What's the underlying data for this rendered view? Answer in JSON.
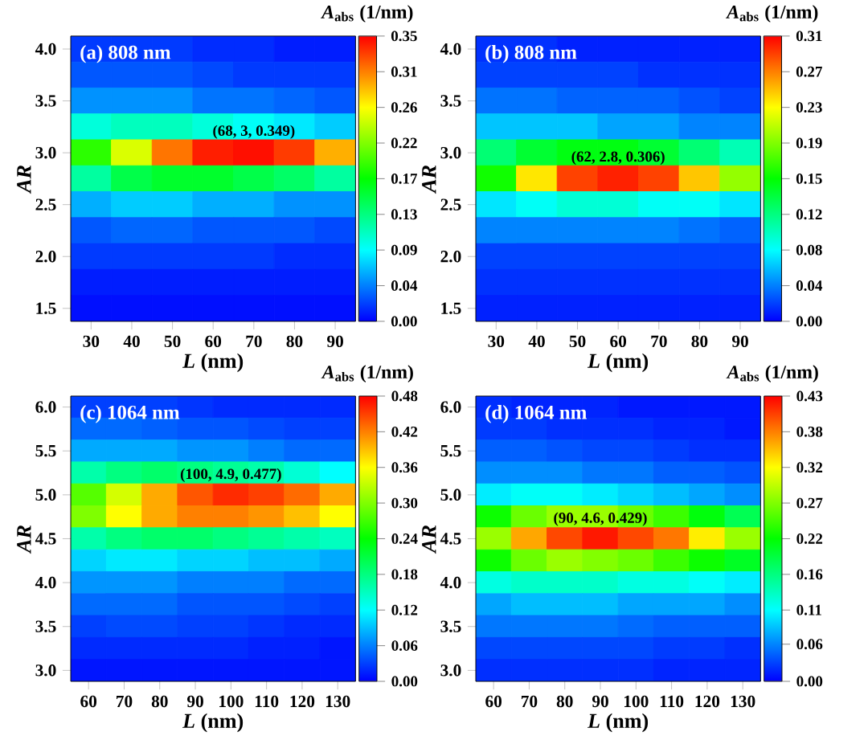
{
  "chart_data": [
    {
      "type": "heatmap",
      "title": "(a) 808 nm",
      "xlabel": "*L* (nm)",
      "ylabel": "AR",
      "clabel": "*A*$_{abs}$ (1/nm)",
      "categories": [
        "30",
        "40",
        "50",
        "60",
        "70",
        "80",
        "90"
      ],
      "y_categories": [
        "4.0",
        null,
        "3.5",
        null,
        "3.0",
        null,
        "2.5",
        null,
        "2.0",
        null,
        "1.5"
      ],
      "cells": [
        [
          0.02,
          0.02,
          0.02,
          0.015,
          0.015,
          0.01,
          0.01
        ],
        [
          0.03,
          0.03,
          0.03,
          0.025,
          0.02,
          0.02,
          0.02
        ],
        [
          0.05,
          0.05,
          0.05,
          0.04,
          0.04,
          0.035,
          0.03
        ],
        [
          0.1,
          0.11,
          0.11,
          0.1,
          0.09,
          0.08,
          0.07
        ],
        [
          0.19,
          0.25,
          0.31,
          0.34,
          0.345,
          0.33,
          0.29
        ],
        [
          0.12,
          0.15,
          0.16,
          0.16,
          0.15,
          0.14,
          0.12
        ],
        [
          0.06,
          0.07,
          0.07,
          0.06,
          0.06,
          0.05,
          0.05
        ],
        [
          0.03,
          0.035,
          0.035,
          0.03,
          0.03,
          0.03,
          0.025
        ],
        [
          0.02,
          0.02,
          0.02,
          0.02,
          0.02,
          0.015,
          0.015
        ],
        [
          0.01,
          0.01,
          0.01,
          0.01,
          0.01,
          0.01,
          0.01
        ],
        [
          0.005,
          0.005,
          0.005,
          0.005,
          0.005,
          0.005,
          0.005
        ]
      ],
      "clim": [
        0,
        0.35
      ],
      "cticks": [
        {
          "value": 0,
          "label": "0.00"
        },
        {
          "value": 0.04375,
          "label": "0.04"
        },
        {
          "value": 0.0875,
          "label": "0.09"
        },
        {
          "value": 0.13125,
          "label": "0.13"
        },
        {
          "value": 0.175,
          "label": "0.17"
        },
        {
          "value": 0.21875,
          "label": "0.22"
        },
        {
          "value": 0.2625,
          "label": "0.26"
        },
        {
          "value": 0.30625,
          "label": "0.31"
        },
        {
          "value": 0.35,
          "label": "0.35"
        }
      ],
      "annotations": [
        "(68, 3, 0.349)"
      ]
    },
    {
      "type": "heatmap",
      "title": "(b) 808 nm",
      "xlabel": "*L* (nm)",
      "ylabel": "AR",
      "clabel": "*A*$_{abs}$ (1/nm)",
      "categories": [
        "30",
        "40",
        "50",
        "60",
        "70",
        "80",
        "90"
      ],
      "y_categories": [
        "4.0",
        null,
        "3.5",
        null,
        "3.0",
        null,
        "2.5",
        null,
        "2.0",
        null,
        "1.5"
      ],
      "cells": [
        [
          0.015,
          0.015,
          0.01,
          0.01,
          0.01,
          0.01,
          0.01
        ],
        [
          0.02,
          0.02,
          0.02,
          0.02,
          0.015,
          0.015,
          0.015
        ],
        [
          0.035,
          0.035,
          0.03,
          0.03,
          0.03,
          0.025,
          0.02
        ],
        [
          0.06,
          0.06,
          0.06,
          0.05,
          0.05,
          0.04,
          0.04
        ],
        [
          0.12,
          0.14,
          0.15,
          0.15,
          0.14,
          0.12,
          0.1
        ],
        [
          0.16,
          0.24,
          0.29,
          0.3,
          0.29,
          0.25,
          0.2
        ],
        [
          0.07,
          0.08,
          0.09,
          0.09,
          0.08,
          0.08,
          0.07
        ],
        [
          0.04,
          0.04,
          0.04,
          0.04,
          0.04,
          0.035,
          0.03
        ],
        [
          0.02,
          0.02,
          0.02,
          0.02,
          0.02,
          0.02,
          0.02
        ],
        [
          0.015,
          0.015,
          0.015,
          0.015,
          0.015,
          0.015,
          0.015
        ],
        [
          0.01,
          0.01,
          0.01,
          0.01,
          0.01,
          0.01,
          0.01
        ]
      ],
      "clim": [
        0,
        0.31
      ],
      "cticks": [
        {
          "value": 0,
          "label": "0.00"
        },
        {
          "value": 0.03875,
          "label": "0.04"
        },
        {
          "value": 0.0775,
          "label": "0.08"
        },
        {
          "value": 0.11625,
          "label": "0.12"
        },
        {
          "value": 0.155,
          "label": "0.15"
        },
        {
          "value": 0.19375,
          "label": "0.19"
        },
        {
          "value": 0.2325,
          "label": "0.23"
        },
        {
          "value": 0.27125,
          "label": "0.27"
        },
        {
          "value": 0.31,
          "label": "0.31"
        }
      ],
      "annotations": [
        "(62, 2.8, 0.306)"
      ]
    },
    {
      "type": "heatmap",
      "title": "(c) 1064 nm",
      "xlabel": "*L* (nm)",
      "ylabel": "AR",
      "clabel": "*A*$_{abs}$ (1/nm)",
      "categories": [
        "60",
        "70",
        "80",
        "90",
        "100",
        "110",
        "120",
        "130"
      ],
      "y_categories": [
        "6.0",
        null,
        "5.5",
        null,
        "5.0",
        null,
        "4.5",
        null,
        "4.0",
        null,
        "3.5",
        null,
        "3.0"
      ],
      "cells": [
        [
          0.03,
          0.03,
          0.03,
          0.025,
          0.02,
          0.02,
          0.02,
          0.02
        ],
        [
          0.05,
          0.05,
          0.045,
          0.04,
          0.04,
          0.035,
          0.03,
          0.03
        ],
        [
          0.08,
          0.08,
          0.08,
          0.07,
          0.07,
          0.06,
          0.05,
          0.05
        ],
        [
          0.16,
          0.18,
          0.19,
          0.18,
          0.17,
          0.16,
          0.14,
          0.12
        ],
        [
          0.28,
          0.34,
          0.4,
          0.44,
          0.46,
          0.45,
          0.43,
          0.4
        ],
        [
          0.3,
          0.36,
          0.4,
          0.42,
          0.42,
          0.41,
          0.39,
          0.36
        ],
        [
          0.16,
          0.18,
          0.19,
          0.19,
          0.18,
          0.17,
          0.16,
          0.15
        ],
        [
          0.1,
          0.11,
          0.11,
          0.1,
          0.1,
          0.09,
          0.09,
          0.08
        ],
        [
          0.07,
          0.07,
          0.07,
          0.06,
          0.06,
          0.06,
          0.05,
          0.05
        ],
        [
          0.05,
          0.05,
          0.05,
          0.04,
          0.04,
          0.04,
          0.035,
          0.03
        ],
        [
          0.03,
          0.035,
          0.035,
          0.03,
          0.03,
          0.025,
          0.02,
          0.02
        ],
        [
          0.02,
          0.02,
          0.02,
          0.02,
          0.02,
          0.015,
          0.015,
          0.01
        ],
        [
          0.01,
          0.01,
          0.01,
          0.01,
          0.01,
          0.01,
          0.01,
          0.01
        ]
      ],
      "clim": [
        0,
        0.48
      ],
      "cticks": [
        {
          "value": 0,
          "label": "0.00"
        },
        {
          "value": 0.06,
          "label": "0.06"
        },
        {
          "value": 0.12,
          "label": "0.12"
        },
        {
          "value": 0.18,
          "label": "0.18"
        },
        {
          "value": 0.24,
          "label": "0.24"
        },
        {
          "value": 0.3,
          "label": "0.30"
        },
        {
          "value": 0.36,
          "label": "0.36"
        },
        {
          "value": 0.42,
          "label": "0.42"
        },
        {
          "value": 0.48,
          "label": "0.48"
        }
      ],
      "annotations": [
        "(100, 4.9, 0.477)"
      ]
    },
    {
      "type": "heatmap",
      "title": "(d) 1064 nm",
      "xlabel": "*L* (nm)",
      "ylabel": "AR",
      "clabel": "*A*$_{abs}$ (1/nm)",
      "categories": [
        "60",
        "70",
        "80",
        "90",
        "100",
        "110",
        "120",
        "130"
      ],
      "y_categories": [
        "6.0",
        null,
        "5.5",
        null,
        "5.0",
        null,
        "4.5",
        null,
        "4.0",
        null,
        "3.5",
        null,
        "3.0"
      ],
      "cells": [
        [
          0.02,
          0.015,
          0.015,
          0.015,
          0.01,
          0.01,
          0.01,
          0.01
        ],
        [
          0.025,
          0.025,
          0.02,
          0.02,
          0.02,
          0.015,
          0.015,
          0.01
        ],
        [
          0.04,
          0.04,
          0.035,
          0.03,
          0.03,
          0.025,
          0.02,
          0.02
        ],
        [
          0.06,
          0.06,
          0.06,
          0.05,
          0.05,
          0.04,
          0.04,
          0.035
        ],
        [
          0.1,
          0.11,
          0.11,
          0.1,
          0.09,
          0.08,
          0.07,
          0.06
        ],
        [
          0.22,
          0.26,
          0.28,
          0.28,
          0.26,
          0.24,
          0.21,
          0.18
        ],
        [
          0.28,
          0.36,
          0.4,
          0.42,
          0.4,
          0.38,
          0.33,
          0.28
        ],
        [
          0.22,
          0.26,
          0.28,
          0.27,
          0.26,
          0.24,
          0.22,
          0.2
        ],
        [
          0.12,
          0.13,
          0.13,
          0.13,
          0.12,
          0.12,
          0.11,
          0.1
        ],
        [
          0.07,
          0.08,
          0.08,
          0.08,
          0.07,
          0.07,
          0.07,
          0.06
        ],
        [
          0.05,
          0.05,
          0.05,
          0.05,
          0.045,
          0.04,
          0.04,
          0.04
        ],
        [
          0.03,
          0.03,
          0.03,
          0.03,
          0.03,
          0.025,
          0.025,
          0.02
        ],
        [
          0.02,
          0.02,
          0.02,
          0.02,
          0.02,
          0.015,
          0.015,
          0.015
        ]
      ],
      "clim": [
        0,
        0.43
      ],
      "cticks": [
        {
          "value": 0,
          "label": "0.00"
        },
        {
          "value": 0.056,
          "label": "0.06"
        },
        {
          "value": 0.1075,
          "label": "0.11"
        },
        {
          "value": 0.16125,
          "label": "0.16"
        },
        {
          "value": 0.215,
          "label": "0.22"
        },
        {
          "value": 0.26875,
          "label": "0.27"
        },
        {
          "value": 0.3225,
          "label": "0.32"
        },
        {
          "value": 0.37625,
          "label": "0.38"
        },
        {
          "value": 0.43,
          "label": "0.43"
        }
      ],
      "annotations": [
        "(90, 4.6, 0.429)"
      ]
    }
  ]
}
